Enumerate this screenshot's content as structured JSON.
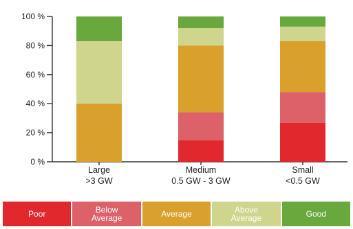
{
  "chart_data": {
    "type": "bar",
    "stacked": true,
    "categories": [
      "Large\n>3 GW",
      "Medium\n0.5 GW - 3 GW",
      "Small\n<0.5 GW"
    ],
    "series": [
      {
        "name": "Poor",
        "color": "#e0282d",
        "values": [
          0,
          15,
          27
        ]
      },
      {
        "name": "Below Average",
        "color": "#dc6169",
        "values": [
          0,
          19,
          21
        ]
      },
      {
        "name": "Average",
        "color": "#d9a02c",
        "values": [
          40,
          46,
          35
        ]
      },
      {
        "name": "Above Average",
        "color": "#cfd58c",
        "values": [
          43,
          12,
          10
        ]
      },
      {
        "name": "Good",
        "color": "#68a83d",
        "values": [
          17,
          8,
          7
        ]
      }
    ],
    "yticks": [
      "0 %",
      "20 %",
      "40 %",
      "60 %",
      "80 %",
      "100 %"
    ],
    "ylim": [
      0,
      100
    ],
    "grid": false,
    "legend_position": "bottom"
  },
  "legend": [
    {
      "label": "Poor",
      "color": "#e0282d"
    },
    {
      "label": "Below\nAverage",
      "color": "#dc6169"
    },
    {
      "label": "Average",
      "color": "#d9a02c"
    },
    {
      "label": "Above\nAverage",
      "color": "#cfd58c"
    },
    {
      "label": "Good",
      "color": "#68a83d"
    }
  ]
}
